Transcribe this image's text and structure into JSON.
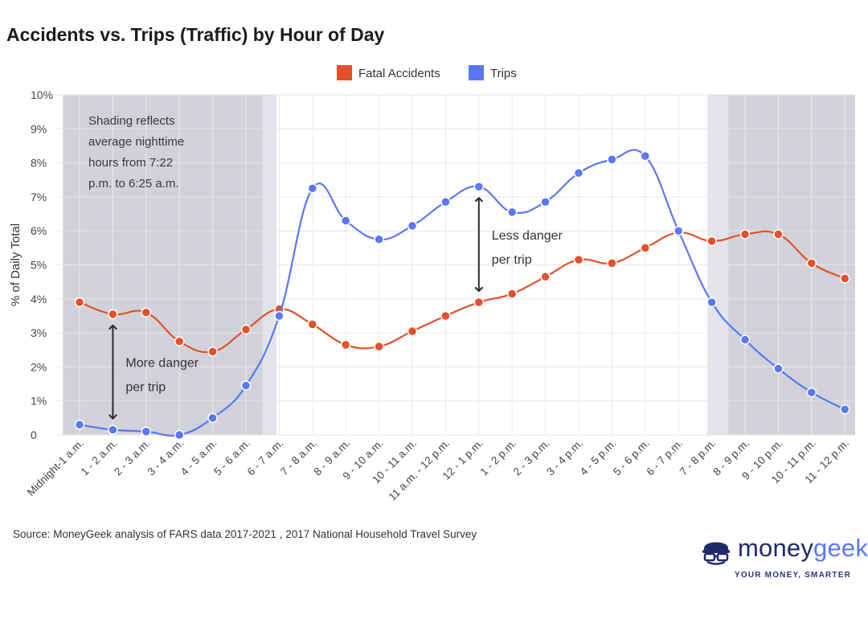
{
  "title": "Accidents vs. Trips (Traffic) by Hour of Day",
  "source": "Source: MoneyGeek analysis of FARS data 2017-2021 , 2017 National Household Travel Survey",
  "logo": {
    "name_part1": "money",
    "name_part2": "geek",
    "tagline": "YOUR MONEY, SMARTER"
  },
  "chart_data": {
    "type": "line",
    "title": "Accidents vs. Trips (Traffic) by Hour of Day",
    "ylabel": "% of Daily Total",
    "xlabel": "",
    "ylim": [
      0,
      10
    ],
    "yticks": [
      "0",
      "1%",
      "2%",
      "3%",
      "4%",
      "5%",
      "6%",
      "7%",
      "8%",
      "9%",
      "10%"
    ],
    "categories": [
      "Midnight-1 a.m.",
      "1 - 2 a.m.",
      "2 - 3 a.m.",
      "3 - 4 a.m.",
      "4 - 5 a.m.",
      "5 - 6 a.m.",
      "6 - 7 a.m.",
      "7 - 8 a.m.",
      "8 - 9 a.m.",
      "9 - 10 a.m.",
      "10 - 11 a.m.",
      "11 a.m. - 12 p.m.",
      "12 - 1 p.m.",
      "1 - 2 p.m.",
      "2 - 3 p.m.",
      "3 - 4 p.m.",
      "4 - 5 p.m.",
      "5 - 6 p.m.",
      "6 - 7 p.m.",
      "7 - 8 p.m.",
      "8 - 9 p.m.",
      "9 - 10 p.m.",
      "10 - 11 p.m.",
      "11 - 12 p.m."
    ],
    "series": [
      {
        "name": "Fatal Accidents",
        "color": "#e4502a",
        "values": [
          3.9,
          3.55,
          3.6,
          2.75,
          2.45,
          3.1,
          3.7,
          3.25,
          2.65,
          2.6,
          3.05,
          3.5,
          3.9,
          4.15,
          4.65,
          5.15,
          5.05,
          5.5,
          5.95,
          5.7,
          5.9,
          5.9,
          5.05,
          4.6
        ]
      },
      {
        "name": "Trips",
        "color": "#5a77f5",
        "values": [
          0.3,
          0.15,
          0.1,
          0.0,
          0.5,
          1.45,
          3.5,
          7.25,
          6.3,
          5.75,
          6.15,
          6.85,
          7.3,
          6.55,
          6.85,
          7.7,
          8.1,
          8.2,
          6.0,
          3.9,
          2.8,
          1.95,
          1.25,
          0.75
        ]
      }
    ],
    "legend": "top-center",
    "shading": {
      "description": "nighttime hours",
      "regions": [
        {
          "from_hour": 0,
          "to_hour": 6.42,
          "dark_until_hour": 6.0
        },
        {
          "from_hour": 19.37,
          "to_hour": 24,
          "dark_from_hour": 20.0
        }
      ],
      "note": "Shading reflects average nighttime hours from 7:22 p.m. to 6:25 a.m.",
      "note_lines": [
        "Shading reflects",
        "average nighttime",
        "hours from 7:22",
        "p.m. to 6:25 a.m."
      ]
    },
    "annotations": [
      {
        "text_lines": [
          "More danger",
          "per trip"
        ],
        "x_index": 1,
        "y_from": 3.55,
        "y_to": 0.15
      },
      {
        "text_lines": [
          "Less danger",
          "per trip"
        ],
        "x_index": 12,
        "y_from": 7.3,
        "y_to": 3.9
      }
    ]
  }
}
